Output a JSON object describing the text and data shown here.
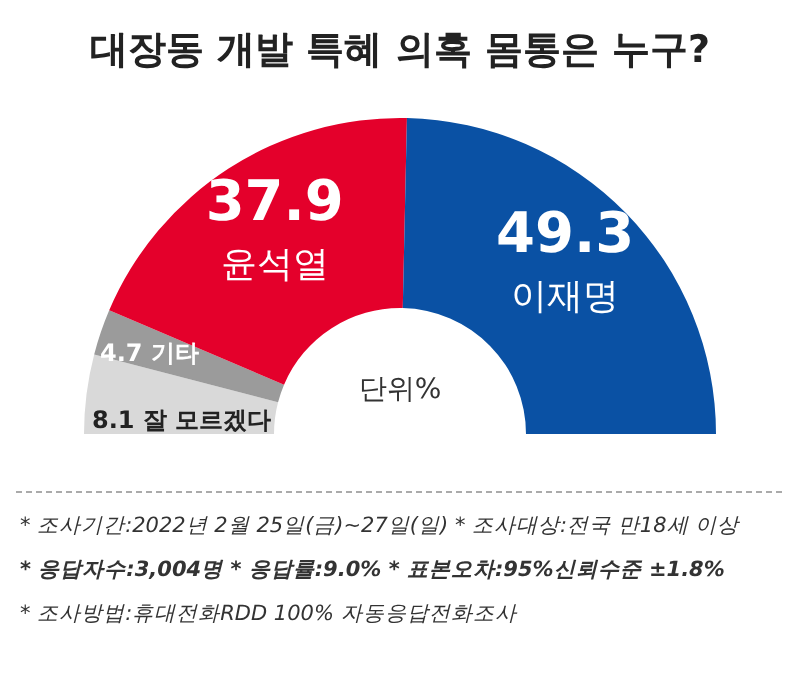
{
  "chart_data": {
    "type": "donut",
    "title": "대장동 개발 특혜 의혹 몸통은 누구?",
    "categories": [
      "잘 모르겠다",
      "기타",
      "윤석열",
      "이재명"
    ],
    "values": [
      8.1,
      4.7,
      37.9,
      49.3
    ],
    "colors": [
      "#d9d9d9",
      "#9b9b9b",
      "#e4002b",
      "#0a51a4"
    ],
    "data_labels": true,
    "annotations": [
      "단위%",
      "* 조사기간:2022년 2월 25일(금)~27일(일)  * 조사대상:전국 만18세 이상",
      "* 응답자수:3,004명  * 응답률:9.0%  * 표본오차:95%신뢰수준 ±1.8%",
      "* 조사방법:휴대전화RDD 100% 자동응답전화조사"
    ]
  }
}
